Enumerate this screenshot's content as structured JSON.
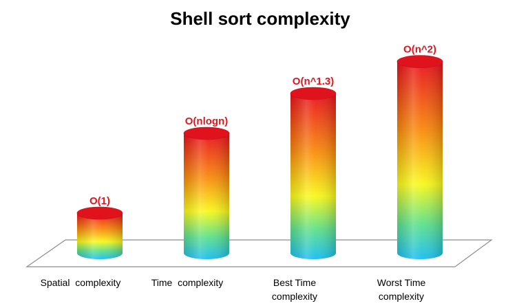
{
  "chart_data": {
    "type": "bar",
    "style": "3d-cylinder",
    "title": "Shell sort complexity",
    "xlabel": "",
    "ylabel": "",
    "categories": [
      "Spatial  complexity",
      "Time  complexity",
      "Best Time complexity",
      "Worst Time complexity"
    ],
    "values": [
      1,
      3,
      4,
      4.8
    ],
    "data_labels": [
      "O(1)",
      "O(nlogn)",
      "O(n^1.3)",
      "O(n^2)"
    ],
    "ylim": [
      0,
      5
    ],
    "grid": false,
    "legend": "none",
    "colors": {
      "gradient_top": "#e8101c",
      "gradient_mid": "#f8f81a",
      "gradient_bottom": "#1cc0f0",
      "data_label": "#e4141c",
      "floor_line": "#888888"
    }
  }
}
